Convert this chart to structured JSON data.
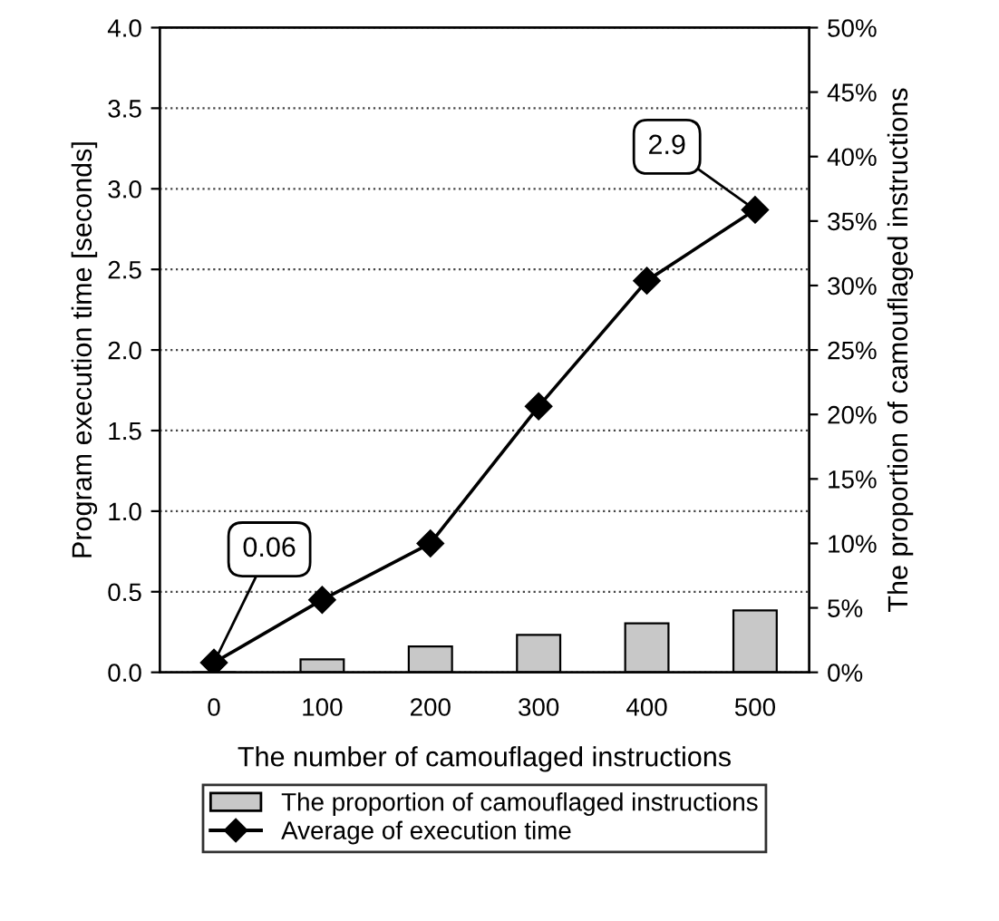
{
  "chart_data": {
    "type": "bar",
    "xlabel": "The number of camouflaged instructions",
    "ylabel": "Program execution time [seconds]",
    "y2label": "The proportion of camouflaged instructions",
    "categories": [
      "0",
      "100",
      "200",
      "300",
      "400",
      "500"
    ],
    "series": [
      {
        "name": "The proportion of camouflaged instructions",
        "axis": "y2",
        "color": "#c8c8c8",
        "values": [
          0,
          1.0,
          2.0,
          2.9,
          3.8,
          4.8
        ]
      },
      {
        "name": "Average of execution time",
        "type": "line",
        "axis": "y",
        "color": "#000000",
        "marker": "diamond",
        "values": [
          0.06,
          0.45,
          0.8,
          1.65,
          2.43,
          2.87
        ],
        "value_labels": [
          "0.06",
          null,
          null,
          null,
          null,
          "2.9"
        ]
      }
    ],
    "ylim": [
      0,
      4
    ],
    "yticks": [
      {
        "value": 0,
        "label": "0.0"
      },
      0.5,
      {
        "value": 1,
        "label": "1.0"
      },
      1.5,
      {
        "value": 2,
        "label": "2.0"
      },
      2.5,
      {
        "value": 3,
        "label": "3.0"
      },
      3.5,
      {
        "value": 4,
        "label": "4.0"
      }
    ],
    "y2lim": [
      0,
      50
    ],
    "y2ticks": [
      {
        "value": 0,
        "label": "0%"
      },
      {
        "value": 5,
        "label": "5%"
      },
      {
        "value": 10,
        "label": "10%"
      },
      {
        "value": 15,
        "label": "15%"
      },
      {
        "value": 20,
        "label": "20%"
      },
      {
        "value": 25,
        "label": "25%"
      },
      {
        "value": 30,
        "label": "30%"
      },
      {
        "value": 35,
        "label": "35%"
      },
      {
        "value": 40,
        "label": "40%"
      },
      {
        "value": 45,
        "label": "45%"
      },
      {
        "value": 50,
        "label": "50%"
      }
    ],
    "grid": "y",
    "legend": "bottom"
  }
}
